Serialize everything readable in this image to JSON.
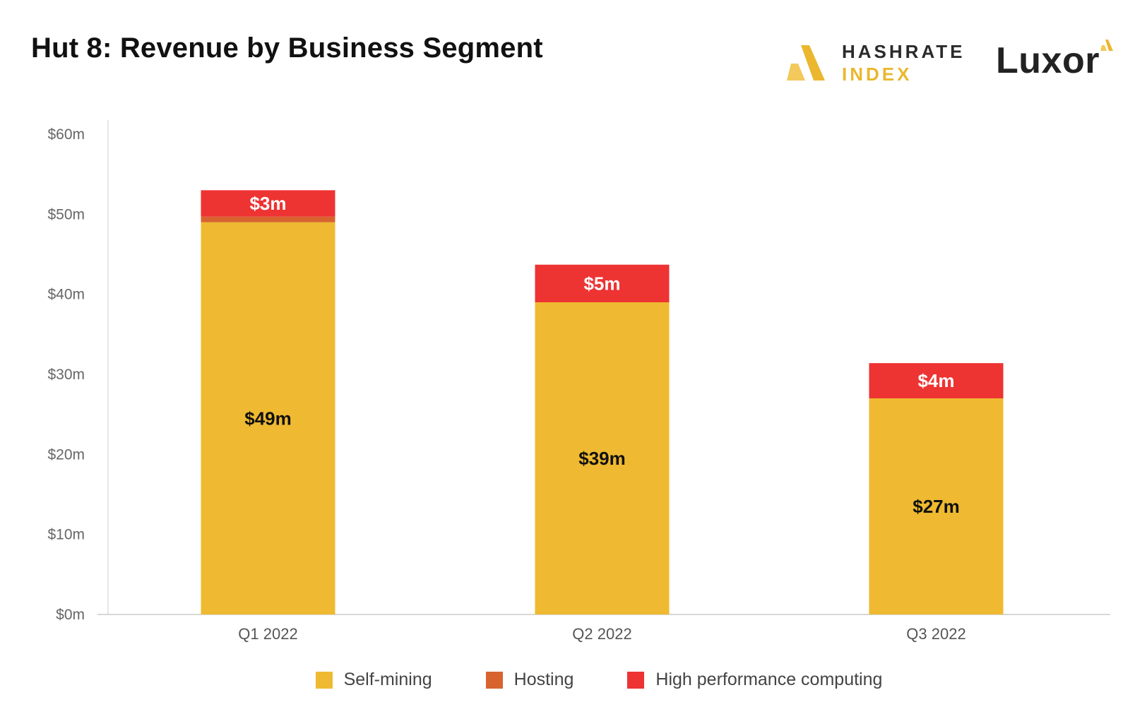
{
  "title": "Hut 8: Revenue by Business Segment",
  "brand": {
    "hashrate_word1": "HASHRATE",
    "hashrate_word2": "INDEX",
    "luxor": "Luxor",
    "colors": {
      "dark": "#2b2b2b",
      "gold": "#eab72f"
    }
  },
  "chart_data": {
    "type": "bar",
    "stacked": true,
    "title": "Hut 8: Revenue by Business Segment",
    "xlabel": "",
    "ylabel": "",
    "ylim": [
      0,
      60
    ],
    "yticks": [
      0,
      10,
      20,
      30,
      40,
      50,
      60
    ],
    "ytick_labels": [
      "$0m",
      "$10m",
      "$20m",
      "$30m",
      "$40m",
      "$50m",
      "$60m"
    ],
    "categories": [
      "Q1 2022",
      "Q2 2022",
      "Q3 2022"
    ],
    "series": [
      {
        "name": "Self-mining",
        "color": "#efba31",
        "values": [
          49,
          39,
          27
        ],
        "labels": [
          "$49m",
          "$39m",
          "$27m"
        ],
        "label_color": "#111111"
      },
      {
        "name": "Hosting",
        "color": "#d8632f",
        "values": [
          0.7,
          0,
          0
        ],
        "labels": [
          "",
          "",
          ""
        ],
        "label_color": "#ffffff"
      },
      {
        "name": "High performance computing",
        "color": "#ee3333",
        "values": [
          3.3,
          4.7,
          4.4
        ],
        "labels": [
          "$3m",
          "$5m",
          "$4m"
        ],
        "label_color": "#ffffff"
      }
    ],
    "legend_position": "bottom-center",
    "grid": false
  }
}
